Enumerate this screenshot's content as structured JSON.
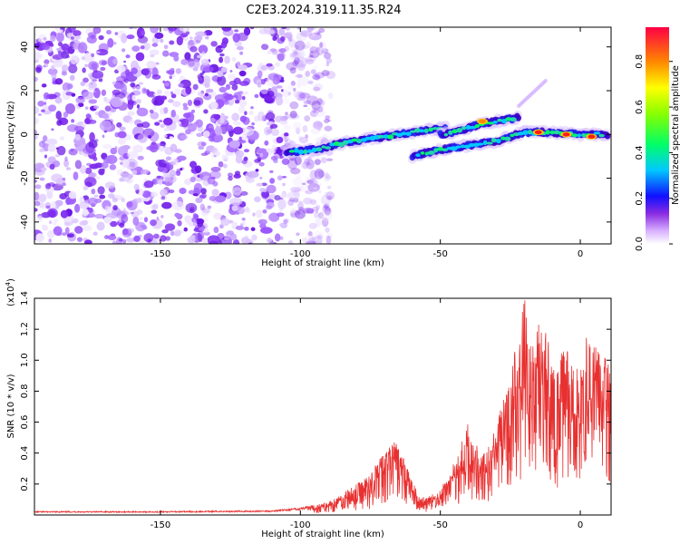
{
  "title": "C2E3.2024.319.11.35.R24",
  "chart_data": [
    {
      "type": "heatmap",
      "xlabel": "Height of straight line (km)",
      "ylabel": "Frequency (Hz)",
      "xlim": [
        -195,
        11
      ],
      "ylim": [
        -50,
        49
      ],
      "x_ticks": [
        -150,
        -100,
        -50,
        0
      ],
      "y_ticks": [
        -40,
        -20,
        0,
        20,
        40
      ],
      "colorbar": {
        "label": "Normalized spectral amplitude",
        "range": [
          0,
          0.95
        ],
        "ticks": [
          0.0,
          0.2,
          0.4,
          0.6,
          0.8
        ]
      },
      "features": {
        "noise_region_x": [
          -195,
          -95
        ],
        "branches": [
          {
            "x": [
              -105,
              -95,
              -85,
              -75,
              -65,
              -55,
              -48
            ],
            "y": [
              -8,
              -7,
              -4,
              -2,
              0,
              2,
              3
            ]
          },
          {
            "x": [
              -50,
              -45,
              -40,
              -35,
              -30,
              -25,
              -22
            ],
            "y": [
              0,
              1,
              3,
              5,
              6,
              7,
              8
            ]
          },
          {
            "x": [
              -60,
              -50,
              -40,
              -30,
              -20,
              -10,
              0,
              10
            ],
            "y": [
              -10,
              -7,
              -5,
              -3,
              1,
              1,
              0,
              0
            ]
          }
        ],
        "peaks": [
          {
            "x": -15,
            "y": 1,
            "amp": 0.92
          },
          {
            "x": -5,
            "y": 0,
            "amp": 0.9
          },
          {
            "x": 4,
            "y": -1,
            "amp": 0.95
          },
          {
            "x": -35,
            "y": 6,
            "amp": 0.7
          }
        ]
      }
    },
    {
      "type": "line",
      "xlabel": "Height of straight line (km)",
      "ylabel": "SNR (10 * v/v)",
      "y_multiplier": "(x10",
      "y_multiplier_exp": "4",
      "y_multiplier_close": ")",
      "xlim": [
        -195,
        11
      ],
      "ylim": [
        0,
        1.4
      ],
      "x_ticks": [
        -150,
        -100,
        -50,
        0
      ],
      "y_ticks": [
        0.2,
        0.4,
        0.6,
        0.8,
        1.0,
        1.2,
        1.4
      ],
      "series": [
        {
          "color": "#e83030",
          "envelope": {
            "x": [
              -195,
              -150,
              -110,
              -100,
              -90,
              -80,
              -75,
              -70,
              -66,
              -62,
              -58,
              -55,
              -50,
              -46,
              -43,
              -40,
              -38,
              -35,
              -32,
              -29,
              -26,
              -24,
              -22,
              -20,
              -18,
              -16,
              -14,
              -12,
              -10,
              -8,
              -6,
              -4,
              -2,
              0,
              2,
              4,
              6,
              8,
              10,
              11
            ],
            "y": [
              0.02,
              0.02,
              0.025,
              0.04,
              0.08,
              0.18,
              0.25,
              0.38,
              0.45,
              0.3,
              0.12,
              0.1,
              0.15,
              0.28,
              0.4,
              0.55,
              0.45,
              0.35,
              0.42,
              0.6,
              0.75,
              0.9,
              1.1,
              1.3,
              1.0,
              1.1,
              1.2,
              1.05,
              0.95,
              0.9,
              1.0,
              0.95,
              0.85,
              0.9,
              1.05,
              1.0,
              1.1,
              0.95,
              0.9,
              0.8
            ]
          }
        }
      ]
    }
  ],
  "colors": {
    "noise": "#9a55ff",
    "line": "#e83030"
  }
}
